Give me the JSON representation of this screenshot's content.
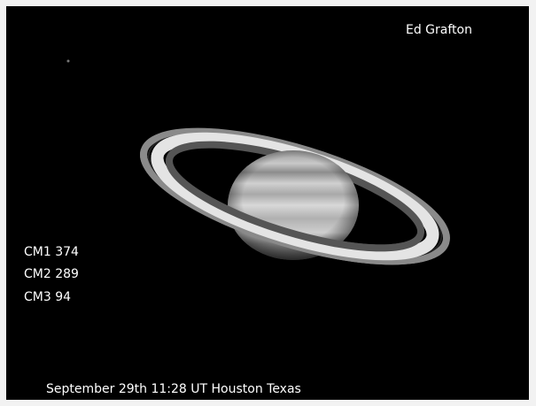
{
  "credit": "Ed Grafton",
  "central_meridians": [
    "CM1 374",
    "CM2 289",
    "CM3 94"
  ],
  "caption": "September 29th 11:28 UT Houston Texas"
}
